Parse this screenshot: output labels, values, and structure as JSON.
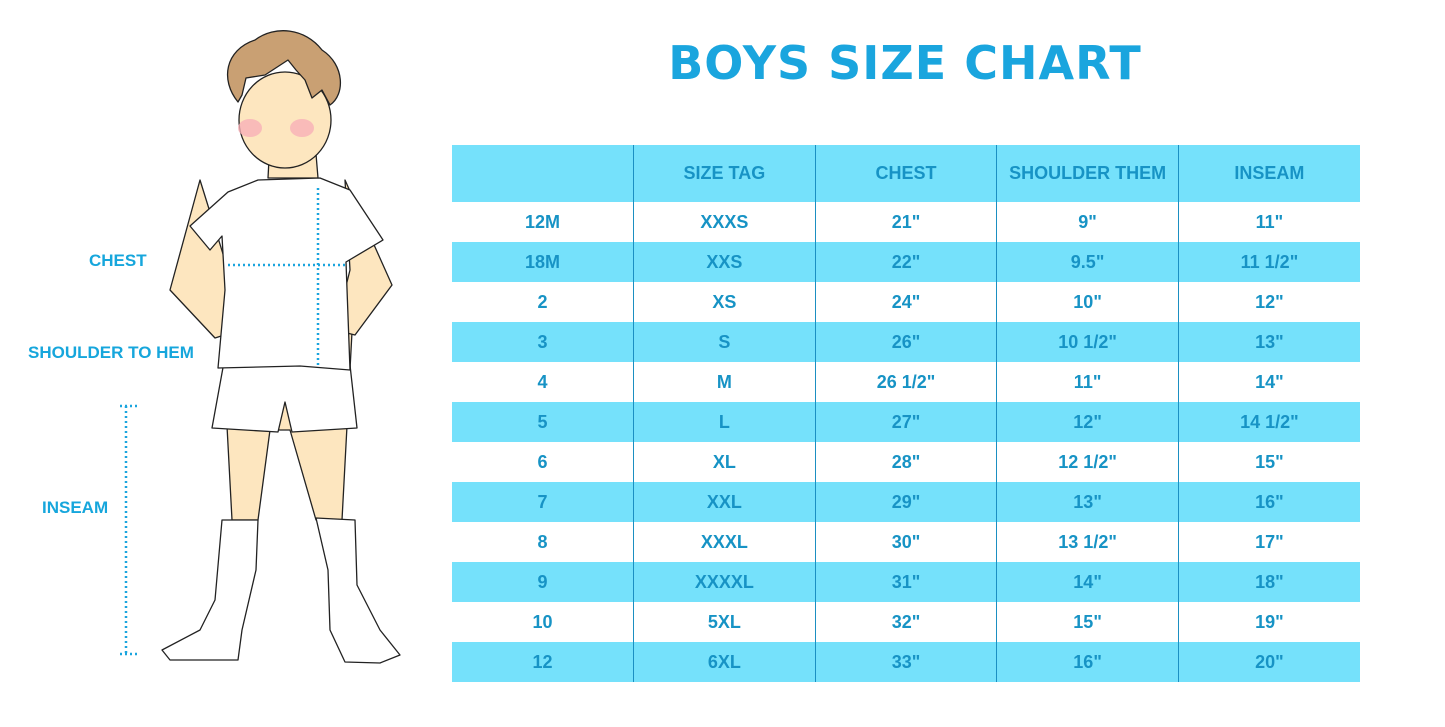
{
  "title": "BOYS SIZE CHART",
  "figure_labels": {
    "chest": "CHEST",
    "shoulder_to_hem": "SHOULDER TO HEM",
    "inseam": "INSEAM"
  },
  "colors": {
    "accent": "#1aa5de",
    "stripe": "#75e1fb",
    "text": "#1793c5"
  },
  "table": {
    "headers": [
      "",
      "SIZE TAG",
      "CHEST",
      "SHOULDER THEM",
      "INSEAM"
    ],
    "rows": [
      [
        "12M",
        "XXXS",
        "21\"",
        "9\"",
        "11\""
      ],
      [
        "18M",
        "XXS",
        "22\"",
        "9.5\"",
        "11 1/2\""
      ],
      [
        "2",
        "XS",
        "24\"",
        "10\"",
        "12\""
      ],
      [
        "3",
        "S",
        "26\"",
        "10 1/2\"",
        "13\""
      ],
      [
        "4",
        "M",
        "26 1/2\"",
        "11\"",
        "14\""
      ],
      [
        "5",
        "L",
        "27\"",
        "12\"",
        "14 1/2\""
      ],
      [
        "6",
        "XL",
        "28\"",
        "12 1/2\"",
        "15\""
      ],
      [
        "7",
        "XXL",
        "29\"",
        "13\"",
        "16\""
      ],
      [
        "8",
        "XXXL",
        "30\"",
        "13 1/2\"",
        "17\""
      ],
      [
        "9",
        "XXXXL",
        "31\"",
        "14\"",
        "18\""
      ],
      [
        "10",
        "5XL",
        "32\"",
        "15\"",
        "19\""
      ],
      [
        "12",
        "6XL",
        "33\"",
        "16\"",
        "20\""
      ]
    ]
  }
}
